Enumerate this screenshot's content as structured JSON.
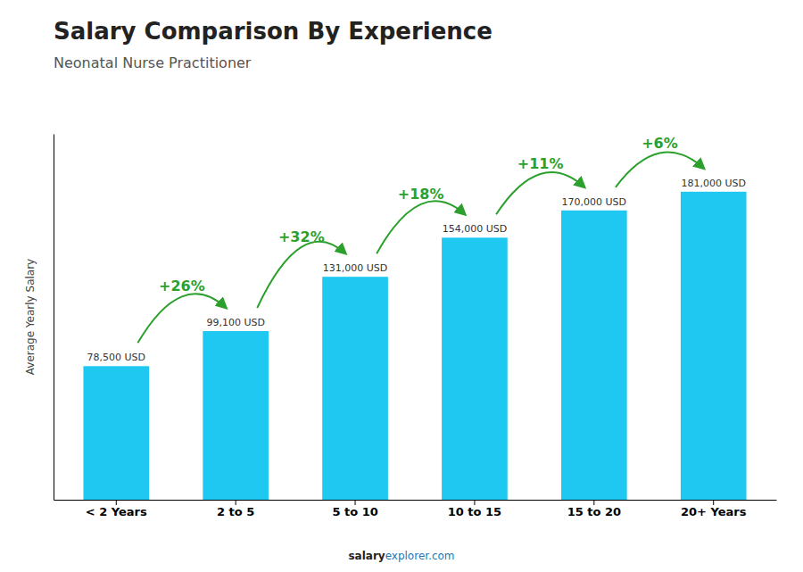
{
  "chart_data": {
    "type": "bar",
    "title": "Salary Comparison By Experience",
    "subtitle": "Neonatal Nurse Practitioner",
    "ylabel": "Average Yearly Salary",
    "categories": [
      "< 2 Years",
      "2 to 5",
      "5 to 10",
      "10 to 15",
      "15 to 20",
      "20+ Years"
    ],
    "values": [
      78500,
      99100,
      131000,
      154000,
      170000,
      181000
    ],
    "value_labels": [
      "78,500 USD",
      "99,100 USD",
      "131,000 USD",
      "154,000 USD",
      "170,000 USD",
      "181,000 USD"
    ],
    "data_labels": true,
    "annotations": [
      "+26%",
      "+32%",
      "+18%",
      "+11%",
      "+6%"
    ],
    "footer": [
      "salary",
      "explorer.com"
    ],
    "color": "#1ec8f0",
    "ylim": [
      0,
      215000
    ],
    "yticks": [],
    "tick_labels": "x",
    "grid": false
  }
}
